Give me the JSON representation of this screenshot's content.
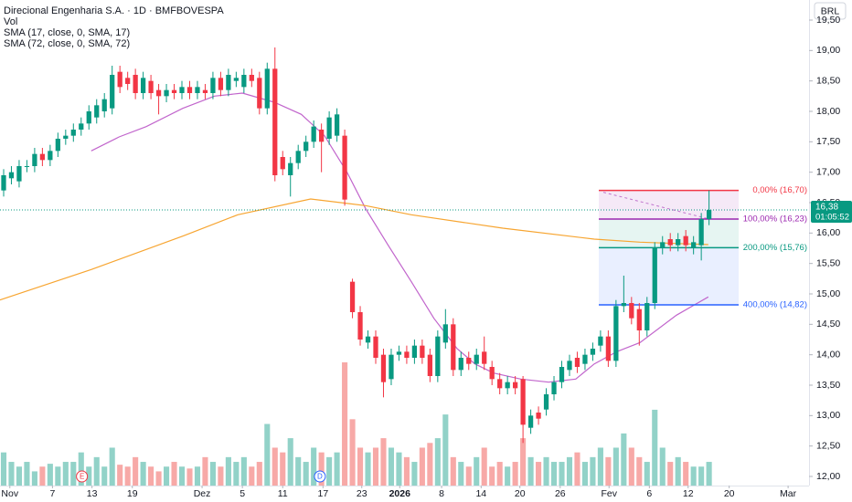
{
  "chart_data": {
    "type": "candlestick",
    "title": "Direcional Engenharia S.A. · 1D · BMFBOVESPA",
    "volume_label": "Vol",
    "currency_button": "BRL",
    "up_color": "#089981",
    "down_color": "#f23645",
    "volume_up_color": "#92d2c8",
    "volume_down_color": "#f7a9a7",
    "open": [
      16.7,
      16.9,
      16.85,
      17.1,
      17.1,
      17.3,
      17.2,
      17.35,
      17.55,
      17.6,
      17.7,
      17.8,
      17.9,
      18.0,
      18.05,
      18.65,
      18.55,
      18.6,
      18.3,
      18.5,
      18.35,
      18.25,
      18.35,
      18.3,
      18.4,
      18.3,
      18.35,
      18.3,
      18.55,
      18.35,
      18.5,
      18.4,
      18.6,
      18.55,
      18.05,
      18.7,
      17.25,
      16.95,
      17.15,
      17.35,
      17.5,
      17.7,
      17.55,
      17.6,
      17.6,
      15.2,
      14.7,
      14.2,
      14.3,
      14.0,
      13.6,
      14.0,
      14.05,
      13.95,
      14.15,
      14.0,
      13.65,
      14.2,
      14.5,
      13.75,
      13.95,
      13.85,
      14.05,
      13.8,
      13.6,
      13.45,
      13.55,
      13.6,
      12.8,
      13.05,
      13.1,
      13.35,
      13.55,
      13.75,
      13.95,
      13.85,
      14.0,
      14.15,
      14.3,
      13.9,
      14.8,
      14.85,
      14.75,
      14.4,
      14.85,
      15.75,
      15.9,
      15.8,
      15.95,
      15.75,
      15.8,
      16.23
    ],
    "high": [
      17.05,
      17.1,
      17.2,
      17.2,
      17.4,
      17.4,
      17.45,
      17.65,
      17.7,
      17.8,
      17.9,
      18.1,
      18.2,
      18.3,
      18.75,
      18.75,
      18.65,
      18.7,
      18.65,
      18.6,
      18.45,
      18.45,
      18.45,
      18.5,
      18.5,
      18.5,
      18.45,
      18.65,
      18.65,
      18.7,
      18.65,
      18.7,
      18.7,
      18.65,
      18.8,
      19.05,
      17.35,
      17.25,
      17.45,
      17.6,
      17.85,
      17.8,
      18.0,
      18.05,
      17.7,
      15.25,
      14.8,
      14.4,
      14.4,
      14.1,
      14.1,
      14.15,
      14.15,
      14.25,
      14.25,
      14.1,
      14.4,
      14.75,
      14.6,
      14.05,
      14.05,
      14.1,
      14.3,
      13.9,
      13.7,
      13.65,
      13.65,
      13.65,
      13.1,
      13.15,
      13.45,
      13.65,
      13.9,
      14.0,
      14.05,
      14.1,
      14.2,
      14.4,
      14.4,
      14.9,
      15.3,
      14.95,
      14.85,
      14.95,
      15.85,
      15.95,
      16.0,
      16.0,
      16.05,
      15.95,
      16.33,
      16.7
    ],
    "low": [
      16.6,
      16.8,
      16.75,
      17.0,
      17.0,
      17.1,
      17.1,
      17.25,
      17.45,
      17.5,
      17.6,
      17.7,
      17.8,
      17.9,
      17.95,
      18.3,
      18.35,
      18.2,
      18.2,
      18.2,
      17.95,
      18.15,
      18.2,
      18.2,
      18.2,
      18.2,
      18.2,
      18.2,
      18.25,
      18.25,
      18.4,
      18.3,
      18.4,
      17.95,
      17.95,
      16.85,
      16.95,
      16.6,
      17.05,
      17.25,
      17.4,
      17.0,
      17.45,
      17.5,
      16.45,
      14.6,
      14.15,
      14.1,
      13.85,
      13.3,
      13.5,
      13.9,
      13.85,
      13.85,
      13.85,
      13.55,
      13.55,
      14.1,
      13.65,
      13.65,
      13.75,
      13.75,
      13.75,
      13.5,
      13.35,
      13.35,
      13.35,
      12.55,
      12.7,
      12.85,
      13.0,
      13.25,
      13.45,
      13.65,
      13.7,
      13.75,
      13.9,
      14.05,
      13.8,
      13.8,
      14.7,
      14.5,
      14.15,
      14.3,
      14.75,
      15.65,
      15.7,
      15.7,
      15.7,
      15.65,
      15.55,
      16.13
    ],
    "close": [
      16.95,
      17.0,
      17.1,
      17.1,
      17.3,
      17.2,
      17.35,
      17.55,
      17.6,
      17.7,
      17.8,
      18.0,
      18.1,
      18.2,
      18.6,
      18.4,
      18.45,
      18.3,
      18.55,
      18.3,
      18.25,
      18.35,
      18.3,
      18.4,
      18.3,
      18.4,
      18.3,
      18.55,
      18.35,
      18.6,
      18.55,
      18.6,
      18.5,
      18.05,
      18.7,
      16.95,
      17.05,
      17.15,
      17.35,
      17.5,
      17.75,
      17.5,
      17.9,
      17.95,
      16.55,
      14.7,
      14.25,
      14.3,
      13.95,
      13.55,
      14.0,
      14.05,
      13.95,
      14.15,
      13.95,
      13.65,
      14.3,
      14.5,
      13.75,
      13.95,
      13.85,
      14.0,
      13.85,
      13.6,
      13.45,
      13.55,
      13.45,
      12.85,
      13.0,
      12.95,
      13.35,
      13.55,
      13.8,
      13.9,
      13.8,
      14.0,
      14.1,
      14.3,
      13.9,
      14.8,
      14.85,
      14.6,
      14.4,
      14.85,
      15.75,
      15.85,
      15.8,
      15.9,
      15.8,
      15.85,
      16.23,
      16.38
    ],
    "volume": [
      3.5,
      2.5,
      2.0,
      2.5,
      1.5,
      2.0,
      2.3,
      2.0,
      2.5,
      2.5,
      3.5,
      2.0,
      3.0,
      2.0,
      4.0,
      2.2,
      2.0,
      3.0,
      2.5,
      2.0,
      1.5,
      2.0,
      2.5,
      2.0,
      1.8,
      2.0,
      3.0,
      2.5,
      2.0,
      3.0,
      2.5,
      3.0,
      2.0,
      2.5,
      6.5,
      4.0,
      3.5,
      5.0,
      3.0,
      2.5,
      4.0,
      3.5,
      3.0,
      3.5,
      13.0,
      7.0,
      4.0,
      3.5,
      4.0,
      5.0,
      4.0,
      3.5,
      3.0,
      2.5,
      4.0,
      4.5,
      5.0,
      7.5,
      3.0,
      2.5,
      2.0,
      3.0,
      4.0,
      2.0,
      2.5,
      2.0,
      2.5,
      5.0,
      3.0,
      2.5,
      3.0,
      2.5,
      2.5,
      3.0,
      3.5,
      2.5,
      3.0,
      4.0,
      3.0,
      4.0,
      5.5,
      4.0,
      3.0,
      2.5,
      8.0,
      4.0,
      2.5,
      3.0,
      2.5,
      2.0,
      2.0,
      2.5
    ],
    "series": [
      {
        "name": "SMA (17, close, 0, SMA, 17)",
        "color": "#c165cc",
        "x": [
          11.3,
          14.9,
          18.4,
          23.1,
          27.2,
          30.8,
          34.9,
          38.4,
          41.4,
          44.3,
          46.7,
          49.6,
          52.6,
          55.5,
          58.5,
          60.8,
          63.2,
          66.7,
          70.3,
          73.8,
          76.2,
          79.1,
          82.1,
          86.8,
          90.9
        ],
        "values": [
          17.35,
          17.58,
          17.75,
          18.05,
          18.25,
          18.3,
          18.15,
          17.95,
          17.6,
          17.0,
          16.4,
          15.8,
          15.2,
          14.6,
          14.1,
          13.85,
          13.7,
          13.6,
          13.55,
          13.6,
          13.85,
          14.05,
          14.2,
          14.65,
          14.95
        ]
      },
      {
        "name": "SMA (72, close, 0, SMA, 72)",
        "color": "#f7a531",
        "x": [
          -0.5,
          11.3,
          23.1,
          30.2,
          39.6,
          46.7,
          52.6,
          64.4,
          76.2,
          82.1,
          90.9
        ],
        "values": [
          14.9,
          15.4,
          15.95,
          16.3,
          16.56,
          16.45,
          16.3,
          16.08,
          15.9,
          15.85,
          15.81
        ]
      }
    ],
    "fib_levels": [
      {
        "value": 16.7,
        "label": "0,00% (16,70)",
        "color": "#f23645"
      },
      {
        "value": 16.23,
        "label": "100,00% (16,23)",
        "color": "#9c27b0"
      },
      {
        "value": 15.76,
        "label": "200,00% (15,76)",
        "color": "#089981"
      },
      {
        "value": 14.82,
        "label": "400,00% (14,82)",
        "color": "#2962ff"
      }
    ],
    "last_price": {
      "value": 16.38,
      "label": "16,38"
    },
    "countdown": "01:05:52",
    "events": [
      {
        "x": 10.1,
        "label": "E",
        "color": "#f23645"
      },
      {
        "x": 40.8,
        "label": "D",
        "color": "#2962ff"
      }
    ],
    "xlim": [
      -0.47,
      103.9
    ],
    "ylim": [
      11.85,
      19.83
    ],
    "xticks": [
      {
        "value": 0.8,
        "label": "Nov"
      },
      {
        "value": 6.3,
        "label": "7"
      },
      {
        "value": 11.4,
        "label": "13"
      },
      {
        "value": 16.6,
        "label": "19"
      },
      {
        "value": 25.6,
        "label": "Dez"
      },
      {
        "value": 30.8,
        "label": "5"
      },
      {
        "value": 36,
        "label": "11"
      },
      {
        "value": 41.2,
        "label": "17"
      },
      {
        "value": 46.2,
        "label": "23"
      },
      {
        "value": 51.1,
        "label": "2026"
      },
      {
        "value": 56.5,
        "label": "8"
      },
      {
        "value": 61.6,
        "label": "14"
      },
      {
        "value": 66.6,
        "label": "20"
      },
      {
        "value": 71.8,
        "label": "26"
      },
      {
        "value": 78.1,
        "label": "Fev"
      },
      {
        "value": 83.3,
        "label": "6"
      },
      {
        "value": 88.3,
        "label": "12"
      },
      {
        "value": 93.6,
        "label": "20"
      },
      {
        "value": 101.2,
        "label": "Mar"
      }
    ],
    "yticks": [
      {
        "value": 12,
        "label": "12,00"
      },
      {
        "value": 12.5,
        "label": "12,50"
      },
      {
        "value": 13,
        "label": "13,00"
      },
      {
        "value": 13.5,
        "label": "13,50"
      },
      {
        "value": 14,
        "label": "14,00"
      },
      {
        "value": 14.5,
        "label": "14,50"
      },
      {
        "value": 15,
        "label": "15,00"
      },
      {
        "value": 15.5,
        "label": "15,50"
      },
      {
        "value": 16,
        "label": "16,00"
      },
      {
        "value": 16.5,
        "label": "16,50"
      },
      {
        "value": 17,
        "label": "17,00"
      },
      {
        "value": 17.5,
        "label": "17,50"
      },
      {
        "value": 18,
        "label": "18,00"
      },
      {
        "value": 18.5,
        "label": "18,50"
      },
      {
        "value": 19,
        "label": "19,00"
      },
      {
        "value": 19.5,
        "label": "19,50"
      }
    ]
  }
}
